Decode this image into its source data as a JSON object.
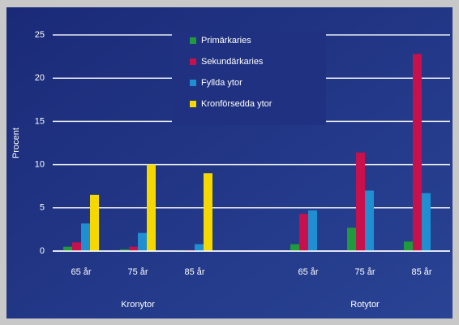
{
  "chart_data": {
    "type": "bar",
    "ylabel": "Procent",
    "categories": [
      "65 år",
      "75 år",
      "85 år",
      null,
      "65 år",
      "75 år",
      "85 år"
    ],
    "groups": [
      "Kronytor",
      "Rotytor"
    ],
    "series": [
      {
        "name": "Primärkaries",
        "color": "#1f9a3c",
        "values": [
          0.5,
          0.2,
          0.1,
          null,
          0.8,
          2.7,
          1.1
        ]
      },
      {
        "name": "Sekundärkaries",
        "color": "#c8104c",
        "values": [
          1.0,
          0.5,
          0.1,
          null,
          4.3,
          11.4,
          22.8
        ]
      },
      {
        "name": "Fyllda ytor",
        "color": "#1f8fd2",
        "values": [
          3.2,
          2.1,
          0.8,
          null,
          4.7,
          7.0,
          6.7
        ]
      },
      {
        "name": "Kronförsedda ytor",
        "color": "#f4d800",
        "values": [
          6.5,
          10.0,
          9.0,
          null,
          null,
          null,
          null
        ]
      }
    ],
    "ylim": [
      0,
      25
    ],
    "yticks": [
      0,
      5,
      10,
      15,
      20,
      25
    ],
    "grid": true
  }
}
